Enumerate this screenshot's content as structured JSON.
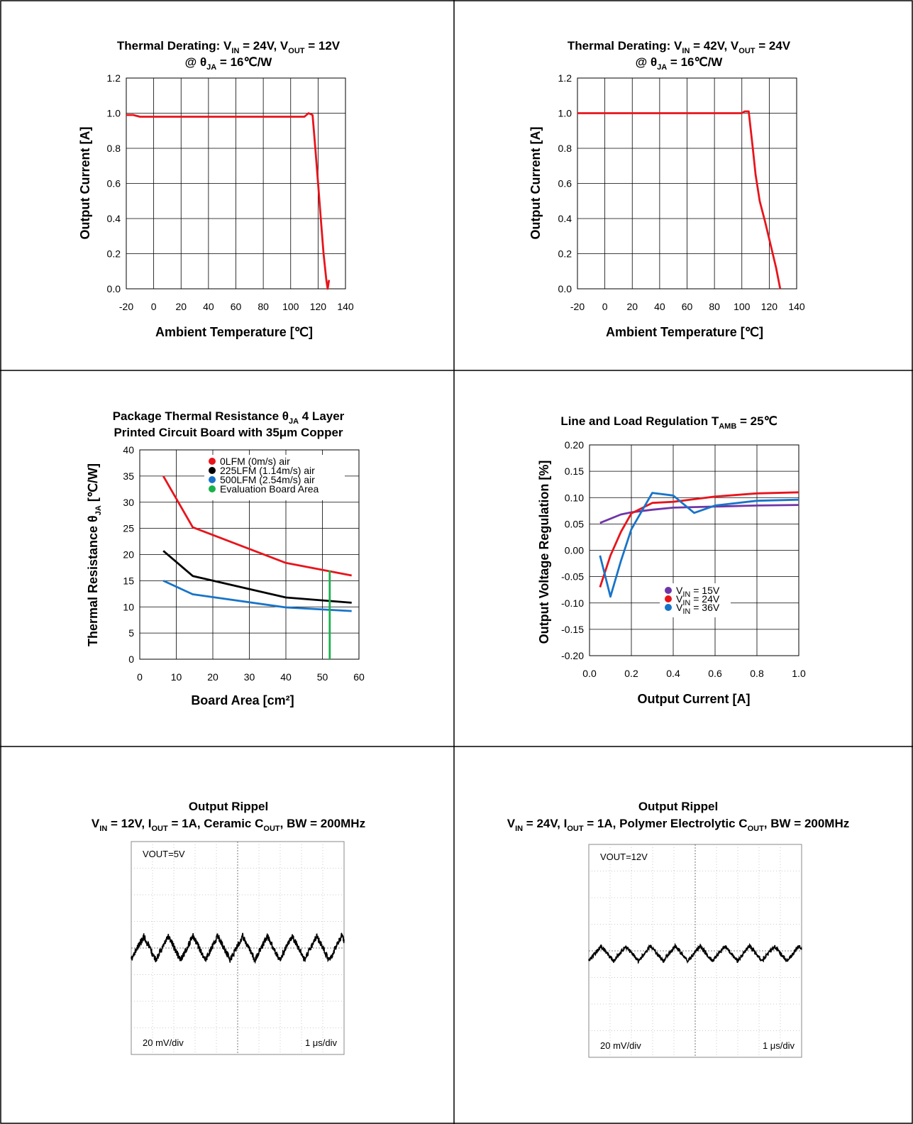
{
  "colors": {
    "red": "#e8141b",
    "black": "#000000",
    "blue": "#1874c8",
    "green": "#17b24a",
    "purple": "#6f35a8",
    "grid": "#000000",
    "frame": "#000000"
  },
  "chart_data": [
    {
      "type": "line",
      "title": {
        "line1_a": "Thermal Derating: V",
        "line1_sub1": "IN",
        "line1_b": " = 24V, V",
        "line1_sub2": "OUT",
        "line1_c": " = 12V",
        "line2_a": "@ θ",
        "line2_sub": "JA",
        "line2_b": " = 16℃/W"
      },
      "xlabel": "Ambient Temperature [℃]",
      "ylabel": "Output Current [A]",
      "xlim": [
        -20,
        140
      ],
      "ylim": [
        0,
        1.2
      ],
      "xticks": [
        -20,
        0,
        20,
        40,
        60,
        80,
        100,
        120,
        140
      ],
      "xtick_labels": [
        "-20",
        "0",
        "20",
        "40",
        "60",
        "80",
        "100",
        "120",
        "140"
      ],
      "yticks": [
        0,
        0.2,
        0.4,
        0.6,
        0.8,
        1.0,
        1.2
      ],
      "ytick_labels": [
        "0.0",
        "0.2",
        "0.4",
        "0.6",
        "0.8",
        "1.0",
        "1.2"
      ],
      "grid": true,
      "series": [
        {
          "color": "red",
          "x": [
            -20,
            -15,
            -10,
            0,
            20,
            60,
            100,
            110,
            113,
            116,
            118,
            120,
            122,
            124,
            126,
            127,
            128
          ],
          "y": [
            0.99,
            0.99,
            0.98,
            0.98,
            0.98,
            0.98,
            0.98,
            0.98,
            1.0,
            0.99,
            0.8,
            0.6,
            0.4,
            0.2,
            0.05,
            0.0,
            0.05
          ]
        }
      ]
    },
    {
      "type": "line",
      "title": {
        "line1_a": "Thermal Derating: V",
        "line1_sub1": "IN",
        "line1_b": " = 42V, V",
        "line1_sub2": "OUT",
        "line1_c": " = 24V",
        "line2_a": "@ θ",
        "line2_sub": "JA",
        "line2_b": " = 16℃/W"
      },
      "xlabel": "Ambient Temperature [℃]",
      "ylabel": "Output Current [A]",
      "xlim": [
        -20,
        140
      ],
      "ylim": [
        0,
        1.2
      ],
      "xticks": [
        -20,
        0,
        20,
        40,
        60,
        80,
        100,
        120,
        140
      ],
      "xtick_labels": [
        "-20",
        "0",
        "20",
        "40",
        "60",
        "80",
        "100",
        "120",
        "140"
      ],
      "yticks": [
        0,
        0.2,
        0.4,
        0.6,
        0.8,
        1.0,
        1.2
      ],
      "ytick_labels": [
        "0.0",
        "0.2",
        "0.4",
        "0.6",
        "0.8",
        "1.0",
        "1.2"
      ],
      "grid": true,
      "series": [
        {
          "color": "red",
          "x": [
            -20,
            -10,
            0,
            40,
            80,
            100,
            102,
            105,
            108,
            110,
            113,
            117,
            121,
            125,
            128
          ],
          "y": [
            1.0,
            1.0,
            1.0,
            1.0,
            1.0,
            1.0,
            1.01,
            1.01,
            0.8,
            0.65,
            0.5,
            0.38,
            0.25,
            0.12,
            0.0
          ]
        }
      ]
    },
    {
      "type": "line",
      "title": {
        "line1_a": "Package Thermal Resistance θ",
        "line1_sub1": "JA",
        "line1_b": "  4 Layer",
        "line2": "Printed Circuit Board with 35μm Copper"
      },
      "xlabel": "Board Area [cm²]",
      "ylabel_a": "Thermal Resistance θ",
      "ylabel_sub": "JA",
      "ylabel_b": " [℃/W]",
      "xlim": [
        0,
        60
      ],
      "ylim": [
        0,
        40
      ],
      "xticks": [
        0,
        10,
        20,
        30,
        40,
        50,
        60
      ],
      "xtick_labels": [
        "0",
        "10",
        "20",
        "30",
        "40",
        "50",
        "60"
      ],
      "yticks": [
        0,
        5,
        10,
        15,
        20,
        25,
        30,
        35,
        40
      ],
      "ytick_labels": [
        "0",
        "5",
        "10",
        "15",
        "20",
        "25",
        "30",
        "35",
        "40"
      ],
      "grid": true,
      "legend": [
        "0LFM (0m/s) air",
        "225LFM (1.14m/s) air",
        "500LFM (2.54m/s) air",
        "Evaluation Board Area"
      ],
      "legend_colors": [
        "red",
        "black",
        "blue",
        "green"
      ],
      "series": [
        {
          "name": "0LFM (0m/s) air",
          "color": "red",
          "x": [
            6.45,
            14.5,
            40,
            58
          ],
          "y": [
            35,
            25.2,
            18.4,
            16
          ]
        },
        {
          "name": "225LFM (1.14m/s) air",
          "color": "black",
          "x": [
            6.45,
            14.5,
            40,
            58
          ],
          "y": [
            20.7,
            15.9,
            11.8,
            10.8
          ]
        },
        {
          "name": "500LFM (2.54m/s) air",
          "color": "blue",
          "x": [
            6.45,
            14.5,
            40,
            58
          ],
          "y": [
            15,
            12.4,
            9.9,
            9.2
          ]
        },
        {
          "name": "Evaluation Board Area",
          "color": "green",
          "x": [
            52,
            52
          ],
          "y": [
            0,
            17
          ]
        }
      ]
    },
    {
      "type": "line",
      "title": {
        "line1_a": "Line and Load Regulation T",
        "line1_sub1": "AMB",
        "line1_b": " = 25℃"
      },
      "xlabel": "Output Current [A]",
      "ylabel": "Output Voltage Regulation [%]",
      "xlim": [
        0,
        1.0
      ],
      "ylim": [
        -0.2,
        0.2
      ],
      "xticks": [
        0,
        0.2,
        0.4,
        0.6,
        0.8,
        1.0
      ],
      "xtick_labels": [
        "0.0",
        "0.2",
        "0.4",
        "0.6",
        "0.8",
        "1.0"
      ],
      "yticks": [
        -0.2,
        -0.15,
        -0.1,
        -0.05,
        0,
        0.05,
        0.1,
        0.15,
        0.2
      ],
      "ytick_labels": [
        "-0.20",
        "-0.15",
        "-0.10",
        "-0.05",
        "0.00",
        "0.05",
        "0.10",
        "0.15",
        "0.20"
      ],
      "grid": true,
      "legend": [
        {
          "a": "V",
          "sub": "IN",
          "b": " = 15V"
        },
        {
          "a": "V",
          "sub": "IN",
          "b": " = 24V"
        },
        {
          "a": "V",
          "sub": "IN",
          "b": " = 36V"
        }
      ],
      "legend_colors": [
        "purple",
        "red",
        "blue"
      ],
      "series": [
        {
          "name": "VIN = 15V",
          "color": "purple",
          "x": [
            0.05,
            0.15,
            0.2,
            0.3,
            0.4,
            0.6,
            0.8,
            1.0
          ],
          "y": [
            0.052,
            0.068,
            0.072,
            0.077,
            0.081,
            0.083,
            0.085,
            0.086
          ]
        },
        {
          "name": "VIN = 24V",
          "color": "red",
          "x": [
            0.05,
            0.1,
            0.15,
            0.2,
            0.3,
            0.4,
            0.5,
            0.6,
            0.8,
            1.0
          ],
          "y": [
            -0.07,
            -0.01,
            0.035,
            0.07,
            0.09,
            0.092,
            0.097,
            0.102,
            0.108,
            0.11
          ]
        },
        {
          "name": "VIN = 36V",
          "color": "blue",
          "x": [
            0.05,
            0.1,
            0.15,
            0.2,
            0.3,
            0.4,
            0.5,
            0.6,
            0.8,
            1.0
          ],
          "y": [
            -0.01,
            -0.088,
            -0.02,
            0.04,
            0.109,
            0.104,
            0.071,
            0.085,
            0.094,
            0.096
          ]
        }
      ]
    },
    {
      "type": "line",
      "title": {
        "line1": "Output Rippel",
        "line2_parts": [
          {
            "t": "V"
          },
          {
            "s": "IN"
          },
          {
            "t": " = 12V, I"
          },
          {
            "s": "OUT"
          },
          {
            "t": " = 1A, Ceramic C"
          },
          {
            "s": "OUT"
          },
          {
            "t": ", BW = 200MHz"
          }
        ]
      },
      "scope_label": "VOUT=5V",
      "vdiv": "20 mV/div",
      "tdiv": "1 μs/div",
      "grid": true,
      "waveform": {
        "cycles": 8.6,
        "amplitude_div": 0.45,
        "offset_div": 0.0,
        "noise_div": 0.12
      }
    },
    {
      "type": "line",
      "title": {
        "line1": "Output Rippel",
        "line2_parts": [
          {
            "t": "V"
          },
          {
            "s": "IN"
          },
          {
            "t": " = 24V, I"
          },
          {
            "s": "OUT"
          },
          {
            "t": " = 1A, Polymer Electrolytic C"
          },
          {
            "s": "OUT"
          },
          {
            "t": ", BW = 200MHz"
          }
        ]
      },
      "scope_label": "VOUT=12V",
      "vdiv": "20 mV/div",
      "tdiv": "1 μs/div",
      "grid": true,
      "waveform": {
        "cycles": 8.6,
        "amplitude_div": 0.28,
        "offset_div": -0.1,
        "noise_div": 0.07
      }
    }
  ]
}
